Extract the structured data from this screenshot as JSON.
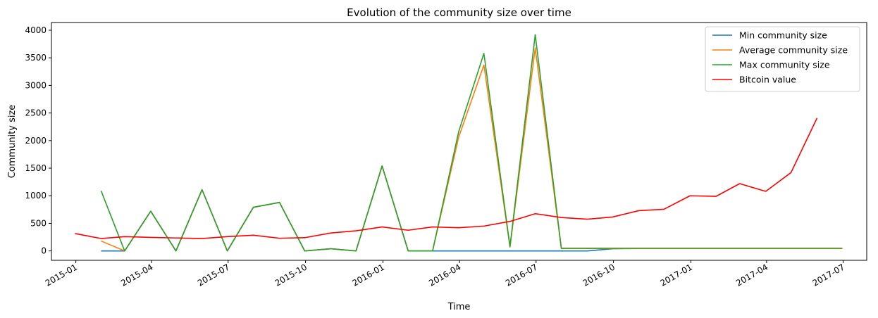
{
  "chart_data": {
    "type": "line",
    "title": "Evolution of the community size over time",
    "xlabel": "Time",
    "ylabel": "Community size",
    "xlim": [
      "2014-12-03",
      "2017-07-29"
    ],
    "ylim": [
      -170,
      4140
    ],
    "x_ticks": [
      "2015-01",
      "2015-04",
      "2015-07",
      "2015-10",
      "2016-01",
      "2016-04",
      "2016-07",
      "2016-10",
      "2017-01",
      "2017-04",
      "2017-07"
    ],
    "y_ticks": [
      0,
      500,
      1000,
      1500,
      2000,
      2500,
      3000,
      3500,
      4000
    ],
    "grid": false,
    "legend_position": "top-right",
    "series": [
      {
        "name": "Min community size",
        "color": "#1f77b4",
        "x": [
          "2015-01-31",
          "2015-02-28",
          "2015-03-31",
          "2015-04-30",
          "2015-05-31",
          "2015-06-30",
          "2015-07-31",
          "2015-08-31",
          "2015-09-30",
          "2015-10-31",
          "2015-11-30",
          "2015-12-31",
          "2016-01-31",
          "2016-02-29",
          "2016-03-31",
          "2016-04-30",
          "2016-05-31",
          "2016-06-30",
          "2016-07-31",
          "2016-08-31",
          "2016-09-30",
          "2016-10-31",
          "2016-11-30",
          "2016-12-31",
          "2017-01-31",
          "2017-02-28",
          "2017-03-31",
          "2017-04-30",
          "2017-05-31",
          "2017-06-30"
        ],
        "y": [
          0,
          0,
          720,
          0,
          1110,
          0,
          790,
          880,
          0,
          40,
          0,
          1540,
          0,
          0,
          0,
          0,
          0,
          0,
          0,
          0,
          40,
          45,
          45,
          45,
          45,
          45,
          45,
          45,
          45,
          45
        ]
      },
      {
        "name": "Average community size",
        "color": "#ff7f0e",
        "x": [
          "2015-01-31",
          "2015-02-28",
          "2015-03-31",
          "2015-04-30",
          "2015-05-31",
          "2015-06-30",
          "2015-07-31",
          "2015-08-31",
          "2015-09-30",
          "2015-10-31",
          "2015-11-30",
          "2015-12-31",
          "2016-01-31",
          "2016-02-29",
          "2016-03-31",
          "2016-04-30",
          "2016-05-31",
          "2016-06-30",
          "2016-07-31",
          "2016-08-31",
          "2016-09-30",
          "2016-10-31",
          "2016-11-30",
          "2016-12-31",
          "2017-01-31",
          "2017-02-28",
          "2017-03-31",
          "2017-04-30",
          "2017-05-31",
          "2017-06-30"
        ],
        "y": [
          180,
          0,
          720,
          0,
          1110,
          0,
          790,
          880,
          0,
          40,
          0,
          1540,
          0,
          0,
          2060,
          3370,
          70,
          3680,
          45,
          45,
          45,
          45,
          45,
          45,
          45,
          45,
          45,
          45,
          45,
          45
        ]
      },
      {
        "name": "Max community size",
        "color": "#2ca02c",
        "x": [
          "2015-01-31",
          "2015-02-28",
          "2015-03-31",
          "2015-04-30",
          "2015-05-31",
          "2015-06-30",
          "2015-07-31",
          "2015-08-31",
          "2015-09-30",
          "2015-10-31",
          "2015-11-30",
          "2015-12-31",
          "2016-01-31",
          "2016-02-29",
          "2016-03-31",
          "2016-04-30",
          "2016-05-31",
          "2016-06-30",
          "2016-07-31",
          "2016-08-31",
          "2016-09-30",
          "2016-10-31",
          "2016-11-30",
          "2016-12-31",
          "2017-01-31",
          "2017-02-28",
          "2017-03-31",
          "2017-04-30",
          "2017-05-31",
          "2017-06-30"
        ],
        "y": [
          1090,
          0,
          720,
          0,
          1110,
          0,
          790,
          880,
          0,
          40,
          0,
          1540,
          0,
          0,
          2160,
          3580,
          80,
          3920,
          50,
          50,
          50,
          50,
          50,
          50,
          50,
          50,
          50,
          50,
          50,
          50
        ]
      },
      {
        "name": "Bitcoin value",
        "color": "#ff0000",
        "x": [
          "2014-12-31",
          "2015-01-31",
          "2015-02-28",
          "2015-03-31",
          "2015-04-30",
          "2015-05-31",
          "2015-06-30",
          "2015-07-31",
          "2015-08-31",
          "2015-09-30",
          "2015-10-31",
          "2015-11-30",
          "2015-12-31",
          "2016-01-31",
          "2016-02-29",
          "2016-03-31",
          "2016-04-30",
          "2016-05-31",
          "2016-06-30",
          "2016-07-31",
          "2016-08-31",
          "2016-09-30",
          "2016-10-31",
          "2016-11-30",
          "2016-12-31",
          "2017-01-31",
          "2017-02-28",
          "2017-03-31",
          "2017-04-30",
          "2017-05-31"
        ],
        "y": [
          315,
          225,
          260,
          245,
          235,
          225,
          260,
          285,
          230,
          240,
          325,
          365,
          435,
          375,
          435,
          420,
          450,
          535,
          675,
          605,
          575,
          615,
          730,
          755,
          1000,
          990,
          1220,
          1080,
          1420,
          2410
        ]
      }
    ]
  }
}
